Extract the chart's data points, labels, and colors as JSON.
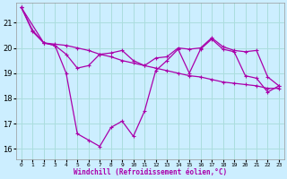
{
  "xlabel": "Windchill (Refroidissement éolien,°C)",
  "background_color": "#cceeff",
  "grid_color": "#aadddd",
  "line_color": "#aa00aa",
  "xlim": [
    -0.5,
    23.5
  ],
  "ylim": [
    15.6,
    21.8
  ],
  "yticks": [
    16,
    17,
    18,
    19,
    20,
    21
  ],
  "xticks": [
    0,
    1,
    2,
    3,
    4,
    5,
    6,
    7,
    8,
    9,
    10,
    11,
    12,
    13,
    14,
    15,
    16,
    17,
    18,
    19,
    20,
    21,
    22,
    23
  ],
  "line1_x": [
    0,
    1,
    2,
    3,
    4,
    5,
    6,
    7,
    8,
    9,
    10,
    11,
    12,
    13,
    14,
    15,
    16,
    17,
    18,
    19,
    20,
    21,
    22,
    23
  ],
  "line1_y": [
    21.6,
    20.7,
    20.2,
    20.15,
    20.1,
    20.0,
    19.9,
    19.75,
    19.65,
    19.5,
    19.4,
    19.3,
    19.2,
    19.1,
    19.0,
    18.9,
    18.85,
    18.75,
    18.65,
    18.6,
    18.55,
    18.5,
    18.4,
    18.4
  ],
  "line2_x": [
    0,
    1,
    2,
    3,
    4,
    5,
    6,
    7,
    8,
    9,
    10,
    11,
    12,
    13,
    14,
    15,
    16,
    17,
    18,
    19,
    20,
    21,
    22,
    23
  ],
  "line2_y": [
    21.6,
    20.65,
    20.2,
    20.1,
    19.0,
    16.6,
    16.35,
    16.1,
    16.85,
    17.1,
    16.5,
    17.5,
    19.1,
    19.5,
    19.95,
    19.0,
    19.95,
    20.35,
    19.95,
    19.85,
    18.9,
    18.8,
    18.25,
    18.5
  ],
  "line3_x": [
    0,
    2,
    3,
    4,
    5,
    6,
    7,
    8,
    9,
    10,
    11,
    12,
    13,
    14,
    15,
    16,
    17,
    18,
    19,
    20,
    21,
    22,
    23
  ],
  "line3_y": [
    21.6,
    20.2,
    20.1,
    19.75,
    19.2,
    19.3,
    19.75,
    19.8,
    19.9,
    19.5,
    19.3,
    19.6,
    19.65,
    20.0,
    19.95,
    20.0,
    20.4,
    20.05,
    19.9,
    19.85,
    19.9,
    18.85,
    18.5
  ]
}
